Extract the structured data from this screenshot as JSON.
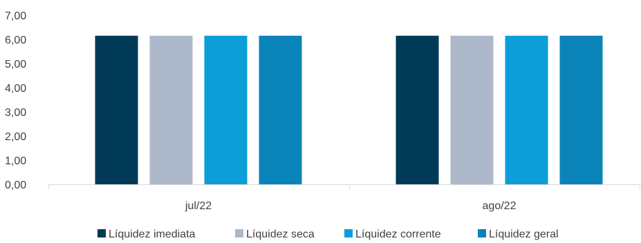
{
  "chart_data": {
    "type": "bar",
    "title": "",
    "xlabel": "",
    "ylabel": "",
    "categories": [
      "jul/22",
      "ago/22"
    ],
    "series": [
      {
        "name": "Líquidez imediata",
        "color": "#003A57",
        "values": [
          6.15,
          6.15
        ]
      },
      {
        "name": "Líquidez seca",
        "color": "#ADB9CA",
        "values": [
          6.15,
          6.15
        ]
      },
      {
        "name": "Líquidez corrente",
        "color": "#0B9ED9",
        "values": [
          6.15,
          6.15
        ]
      },
      {
        "name": "Líquidez geral",
        "color": "#0A84B8",
        "values": [
          6.15,
          6.15
        ]
      }
    ],
    "ylim": [
      0,
      7
    ],
    "yticks": [
      "0,00",
      "1,00",
      "2,00",
      "3,00",
      "4,00",
      "5,00",
      "6,00",
      "7,00"
    ],
    "grid": false,
    "legend": "bottom"
  }
}
